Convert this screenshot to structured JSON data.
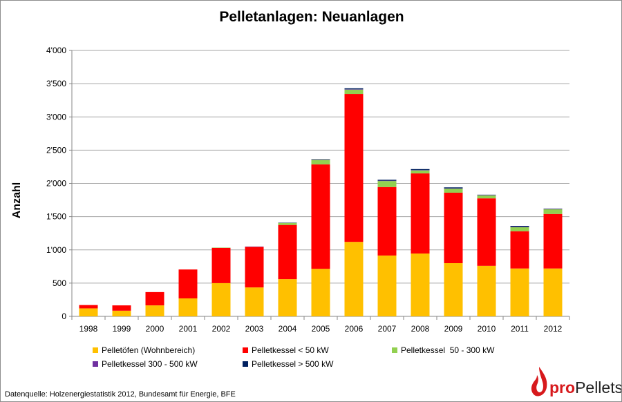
{
  "chart_data": {
    "type": "bar",
    "stacked": true,
    "title": "Pelletanlagen: Neuanlagen",
    "xlabel": "",
    "ylabel": "Anzahl",
    "ylim": [
      0,
      4000
    ],
    "yticks": [
      "0",
      "500",
      "1'000",
      "1'500",
      "2'000",
      "2'500",
      "3'000",
      "3'500",
      "4'000"
    ],
    "ytick_values": [
      0,
      500,
      1000,
      1500,
      2000,
      2500,
      3000,
      3500,
      4000
    ],
    "grid": true,
    "legend_position": "bottom",
    "categories": [
      "1998",
      "1999",
      "2000",
      "2001",
      "2002",
      "2003",
      "2004",
      "2005",
      "2006",
      "2007",
      "2008",
      "2009",
      "2010",
      "2011",
      "2012"
    ],
    "series": [
      {
        "name": "Pelletöfen (Wohnbereich)",
        "color": "#ffc000",
        "values": [
          120,
          85,
          165,
          270,
          500,
          435,
          560,
          715,
          1120,
          915,
          945,
          800,
          760,
          720,
          720
        ]
      },
      {
        "name": "Pelletkessel < 50 kW",
        "color": "#ff0000",
        "values": [
          50,
          80,
          200,
          435,
          530,
          610,
          815,
          1570,
          2225,
          1030,
          1205,
          1060,
          1015,
          560,
          820
        ]
      },
      {
        "name": "Pelletkessel  50 - 300 kW",
        "color": "#92d050",
        "values": [
          0,
          0,
          0,
          0,
          5,
          0,
          30,
          70,
          65,
          90,
          45,
          60,
          45,
          60,
          70
        ]
      },
      {
        "name": "Pelletkessel 300 - 500 kW",
        "color": "#7030a0",
        "values": [
          0,
          0,
          0,
          0,
          0,
          5,
          0,
          5,
          5,
          5,
          5,
          5,
          5,
          5,
          5
        ]
      },
      {
        "name": "Pelletkessel > 500 kW",
        "color": "#002060",
        "values": [
          0,
          0,
          0,
          0,
          0,
          0,
          5,
          5,
          15,
          15,
          15,
          15,
          5,
          15,
          5
        ]
      }
    ]
  },
  "source": "Datenquelle: Holzenergiestatistik 2012, Bundesamt für Energie, BFE",
  "logo": {
    "bold": "pro",
    "rest": "Pellets.ch",
    "flame_color": "#d7191c"
  }
}
